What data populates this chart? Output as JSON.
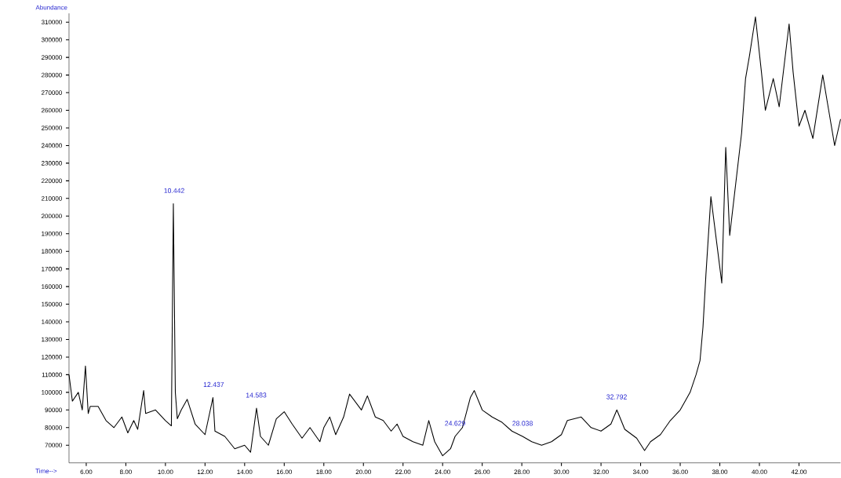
{
  "chart_data": {
    "type": "line",
    "xlabel": "Time-->",
    "ylabel": "Abundance",
    "x": [
      5.13,
      5.3,
      5.6,
      5.8,
      5.96,
      6.1,
      6.2,
      6.6,
      7.0,
      7.4,
      7.8,
      8.1,
      8.4,
      8.6,
      8.9,
      9.0,
      9.5,
      10.0,
      10.3,
      10.4,
      10.5,
      10.6,
      10.8,
      11.1,
      11.5,
      12.0,
      12.4,
      12.5,
      13.0,
      13.5,
      14.0,
      14.3,
      14.6,
      14.8,
      15.2,
      15.6,
      16.0,
      16.4,
      16.9,
      17.3,
      17.8,
      18.0,
      18.3,
      18.6,
      19.0,
      19.3,
      19.9,
      20.2,
      20.6,
      21.0,
      21.4,
      21.7,
      22.0,
      22.5,
      23.0,
      23.3,
      23.6,
      24.0,
      24.4,
      24.629,
      25.0,
      25.4,
      25.6,
      26.0,
      26.5,
      27.0,
      27.5,
      28.038,
      28.5,
      29.0,
      29.5,
      30.0,
      30.3,
      31.0,
      31.5,
      32.0,
      32.5,
      32.8,
      33.2,
      33.8,
      34.2,
      34.5,
      35.0,
      35.5,
      36.0,
      36.5,
      36.8,
      37.0,
      37.15,
      37.3,
      37.55,
      38.1,
      38.3,
      38.5,
      39.1,
      39.3,
      39.5,
      39.8,
      40.1,
      40.3,
      40.7,
      41.0,
      41.5,
      41.7,
      42.0,
      42.3,
      42.7,
      43.2,
      43.5,
      43.8,
      44.1
    ],
    "series": [
      {
        "color": "#000000",
        "values": [
          110000,
          95000,
          100000,
          90000,
          115000,
          88000,
          92000,
          92000,
          84000,
          80000,
          86000,
          77000,
          84000,
          79000,
          101000,
          88000,
          90000,
          84000,
          81000,
          207000,
          100000,
          85000,
          90000,
          96000,
          82000,
          76000,
          97000,
          78000,
          75000,
          68000,
          70000,
          66000,
          91000,
          75000,
          70000,
          85000,
          89000,
          82000,
          74000,
          80000,
          72000,
          80000,
          86000,
          76000,
          86000,
          99000,
          90000,
          98000,
          86000,
          84000,
          78000,
          82000,
          75000,
          72000,
          70000,
          84000,
          72000,
          64000,
          68000,
          75000,
          80000,
          97000,
          101000,
          90000,
          86000,
          83000,
          78000,
          75000,
          72000,
          70000,
          72000,
          76000,
          84000,
          86000,
          80000,
          78000,
          82000,
          90000,
          79000,
          74000,
          67000,
          72000,
          76000,
          84000,
          90000,
          100000,
          110000,
          118000,
          137000,
          167000,
          211000,
          162000,
          239000,
          189000,
          247000,
          278000,
          291000,
          313000,
          282000,
          260000,
          278000,
          262000,
          309000,
          282000,
          251000,
          260000,
          244000,
          280000,
          260000,
          240000,
          255000
        ]
      }
    ],
    "xlim": [
      5.13,
      44.1
    ],
    "ylim": [
      60000,
      315000
    ],
    "xticks": [
      {
        "value": 6,
        "label": "6.00"
      },
      {
        "value": 8,
        "label": "8.00"
      },
      {
        "value": 10,
        "label": "10.00"
      },
      {
        "value": 12,
        "label": "12.00"
      },
      {
        "value": 14,
        "label": "14.00"
      },
      {
        "value": 16,
        "label": "16.00"
      },
      {
        "value": 18,
        "label": "18.00"
      },
      {
        "value": 20,
        "label": "20.00"
      },
      {
        "value": 22,
        "label": "22.00"
      },
      {
        "value": 24,
        "label": "24.00"
      },
      {
        "value": 26,
        "label": "26.00"
      },
      {
        "value": 28,
        "label": "28.00"
      },
      {
        "value": 30,
        "label": "30.00"
      },
      {
        "value": 32,
        "label": "32.00"
      },
      {
        "value": 34,
        "label": "34.00"
      },
      {
        "value": 36,
        "label": "36.00"
      },
      {
        "value": 38,
        "label": "38.00"
      },
      {
        "value": 40,
        "label": "40.00"
      },
      {
        "value": 42,
        "label": "42.00"
      }
    ],
    "yticks": [
      70000,
      80000,
      90000,
      100000,
      110000,
      120000,
      130000,
      140000,
      150000,
      160000,
      170000,
      180000,
      190000,
      200000,
      210000,
      220000,
      230000,
      240000,
      250000,
      260000,
      270000,
      280000,
      290000,
      300000,
      310000
    ],
    "annotations": [
      {
        "text": "10.442",
        "x": 10.442,
        "y": 207000
      },
      {
        "text": "12.437",
        "x": 12.437,
        "y": 97000
      },
      {
        "text": "14.583",
        "x": 14.583,
        "y": 91000
      },
      {
        "text": "24.629",
        "x": 24.629,
        "y": 75000
      },
      {
        "text": "28.038",
        "x": 28.038,
        "y": 75000
      },
      {
        "text": "32.792",
        "x": 32.792,
        "y": 90000
      }
    ],
    "grid": false,
    "marker": "none",
    "line_style": "solid"
  }
}
